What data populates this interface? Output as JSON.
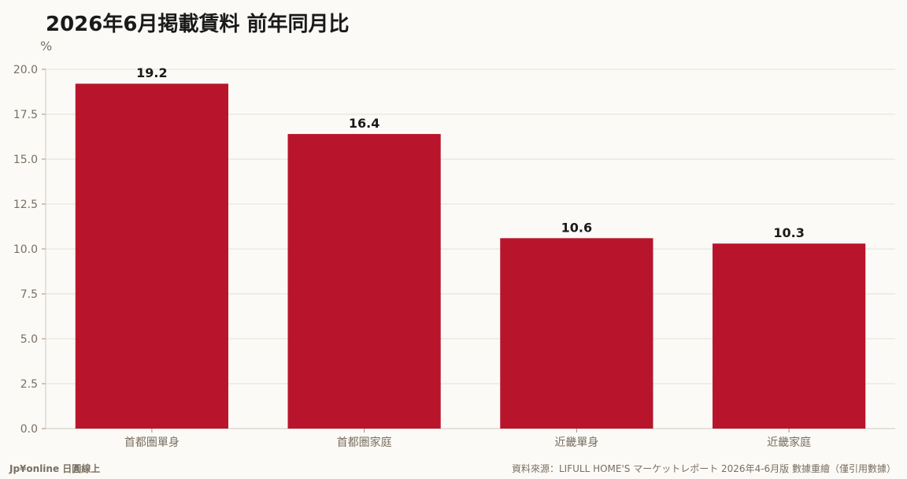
{
  "chart_data": {
    "type": "bar",
    "title": "2026年6月掲載賃料 前年同月比",
    "unit_label": "%",
    "categories": [
      "首都圏單身",
      "首都圏家庭",
      "近畿單身",
      "近畿家庭"
    ],
    "values": [
      19.2,
      16.4,
      10.6,
      10.3
    ],
    "value_labels": [
      "19.2",
      "16.4",
      "10.6",
      "10.3"
    ],
    "ylim": [
      0,
      20
    ],
    "yticks": [
      "0.0",
      "2.5",
      "5.0",
      "7.5",
      "10.0",
      "12.5",
      "15.0",
      "17.5",
      "20.0"
    ],
    "ytick_values": [
      0,
      2.5,
      5,
      7.5,
      10,
      12.5,
      15,
      17.5,
      20
    ],
    "grid": true,
    "bar_color": "#b8152c"
  },
  "footer": {
    "brand": "Jp¥online 日圓線上",
    "source": "資料來源：LIFULL HOME'S マーケットレポート 2026年4-6月版 數據重繪（僅引用數據）"
  }
}
